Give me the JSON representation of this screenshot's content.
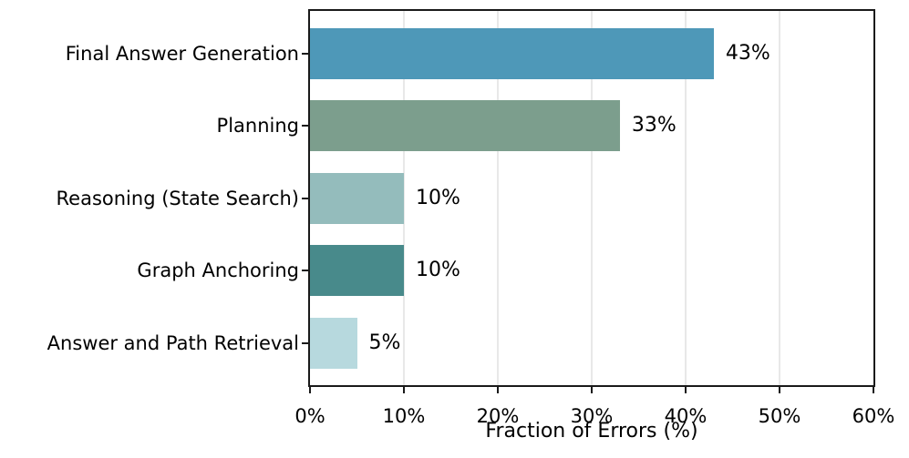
{
  "figure": {
    "background": "#ffffff"
  },
  "chart_data": {
    "type": "bar",
    "orientation": "horizontal",
    "title": "",
    "xlabel": "Fraction of Errors (%)",
    "ylabel": "",
    "xlim": [
      0,
      60
    ],
    "grid": true,
    "grid_axis": "x",
    "legend_position": "none",
    "x_tick_values": [
      0,
      10,
      20,
      30,
      40,
      50,
      60
    ],
    "x_tick_labels": [
      "0%",
      "10%",
      "20%",
      "30%",
      "40%",
      "50%",
      "60%"
    ],
    "categories": [
      "Final Answer Generation",
      "Planning",
      "Reasoning (State Search)",
      "Graph Anchoring",
      "Answer and Path Retrieval"
    ],
    "values": [
      43,
      33,
      10,
      10,
      5
    ],
    "value_labels": [
      "43%",
      "33%",
      "10%",
      "10%",
      "5%"
    ],
    "bar_colors": [
      "#4e98b8",
      "#7c9e8d",
      "#94bcbc",
      "#488a8b",
      "#b7d9de"
    ],
    "colors": {
      "grid": "#e8e8e8",
      "spine": "#1a1a1a",
      "text": "#000000",
      "background": "#ffffff"
    }
  }
}
